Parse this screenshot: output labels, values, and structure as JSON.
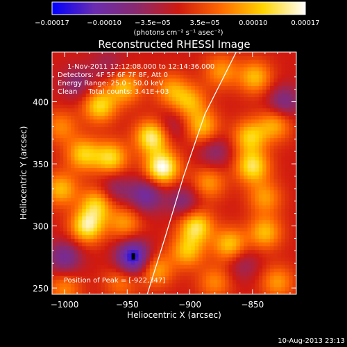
{
  "chart_data": {
    "type": "heatmap",
    "title": "Reconstructed RHESSI Image",
    "xlabel": "Heliocentric X (arcsec)",
    "ylabel": "Heliocentric Y (arcsec)",
    "xlim": [
      -1010,
      -815
    ],
    "ylim": [
      245,
      440
    ],
    "x_ticks": [
      -1000,
      -950,
      -900,
      -850
    ],
    "x_tick_labels": [
      "−1000",
      "−950",
      "−900",
      "−850"
    ],
    "y_ticks": [
      250,
      300,
      350,
      400
    ],
    "y_tick_labels": [
      "250",
      "300",
      "350",
      "400"
    ],
    "colorbar": {
      "min": -0.00017,
      "max": 0.00017,
      "tick_values": [
        -0.00017,
        -0.0001,
        -3.5e-05,
        3.5e-05,
        0.0001,
        0.00017
      ],
      "tick_labels": [
        "−0.00017",
        "−0.00010",
        "−3.5e−05",
        "3.5e−05",
        "0.00010",
        "0.00017"
      ],
      "units_label": "(photons cm⁻² s⁻¹ asec⁻²)",
      "colors": [
        "#0000ff",
        "#6a2cb0",
        "#8a2a6e",
        "#d01a10",
        "#ff6a00",
        "#ffd500",
        "#ffffff"
      ]
    },
    "info_lines": [
      "1-Nov-2011 12:12:08.000 to 12:14:36.000",
      "Detectors: 4F 5F 6F 7F 8F, Att 0",
      "Energy Range: 25.0 - 50.0 keV",
      "Clean     Total counts: 3.41E+03"
    ],
    "peak_label": "Position of Peak = [-922,347]",
    "limb_curve": [
      [
        -934,
        245
      ],
      [
        -920,
        290
      ],
      [
        -905,
        340
      ],
      [
        -888,
        390
      ],
      [
        -863,
        440
      ]
    ],
    "sources": [
      {
        "x": -922,
        "y": 347,
        "v": 0.00017
      },
      {
        "x": -930,
        "y": 372,
        "v": 0.00015
      },
      {
        "x": -972,
        "y": 397,
        "v": 0.00012
      },
      {
        "x": -952,
        "y": 412,
        "v": 0.0001
      },
      {
        "x": -985,
        "y": 358,
        "v": 0.00011
      },
      {
        "x": -963,
        "y": 355,
        "v": 0.00012
      },
      {
        "x": -1003,
        "y": 330,
        "v": 0.0001
      },
      {
        "x": -974,
        "y": 318,
        "v": 0.00011
      },
      {
        "x": -982,
        "y": 300,
        "v": 0.00014
      },
      {
        "x": -952,
        "y": 303,
        "v": 8e-05
      },
      {
        "x": -927,
        "y": 265,
        "v": 9e-05
      },
      {
        "x": -955,
        "y": 255,
        "v": 6e-05
      },
      {
        "x": -1000,
        "y": 250,
        "v": 7e-05
      },
      {
        "x": -915,
        "y": 410,
        "v": 8e-05
      },
      {
        "x": -900,
        "y": 400,
        "v": 9e-05
      },
      {
        "x": -890,
        "y": 380,
        "v": 0.0001
      },
      {
        "x": -875,
        "y": 425,
        "v": 8e-05
      },
      {
        "x": -848,
        "y": 420,
        "v": 0.0001
      },
      {
        "x": -832,
        "y": 382,
        "v": 9e-05
      },
      {
        "x": -852,
        "y": 372,
        "v": 0.00011
      },
      {
        "x": -850,
        "y": 348,
        "v": 0.00013
      },
      {
        "x": -840,
        "y": 323,
        "v": 8e-05
      },
      {
        "x": -885,
        "y": 335,
        "v": 8e-05
      },
      {
        "x": -895,
        "y": 300,
        "v": 0.00013
      },
      {
        "x": -902,
        "y": 280,
        "v": 0.0001
      },
      {
        "x": -868,
        "y": 285,
        "v": 0.00011
      },
      {
        "x": -840,
        "y": 295,
        "v": 0.0001
      },
      {
        "x": -830,
        "y": 255,
        "v": 8e-05
      },
      {
        "x": -880,
        "y": 255,
        "v": 7e-05
      },
      {
        "x": -1003,
        "y": 380,
        "v": 7e-05
      },
      {
        "x": -945,
        "y": 275,
        "v": -0.00016
      },
      {
        "x": -935,
        "y": 325,
        "v": -0.0001
      },
      {
        "x": -1000,
        "y": 275,
        "v": -9e-05
      },
      {
        "x": -960,
        "y": 330,
        "v": -6e-05
      },
      {
        "x": -990,
        "y": 415,
        "v": -6e-05
      },
      {
        "x": -905,
        "y": 320,
        "v": -7e-05
      },
      {
        "x": -880,
        "y": 360,
        "v": -6e-05
      },
      {
        "x": -825,
        "y": 400,
        "v": -8e-05
      },
      {
        "x": -858,
        "y": 270,
        "v": -5e-05
      },
      {
        "x": -915,
        "y": 380,
        "v": -5e-05
      },
      {
        "x": -965,
        "y": 430,
        "v": -4e-05
      }
    ]
  },
  "footer": {
    "date_stamp": "10-Aug-2013 23:13"
  }
}
